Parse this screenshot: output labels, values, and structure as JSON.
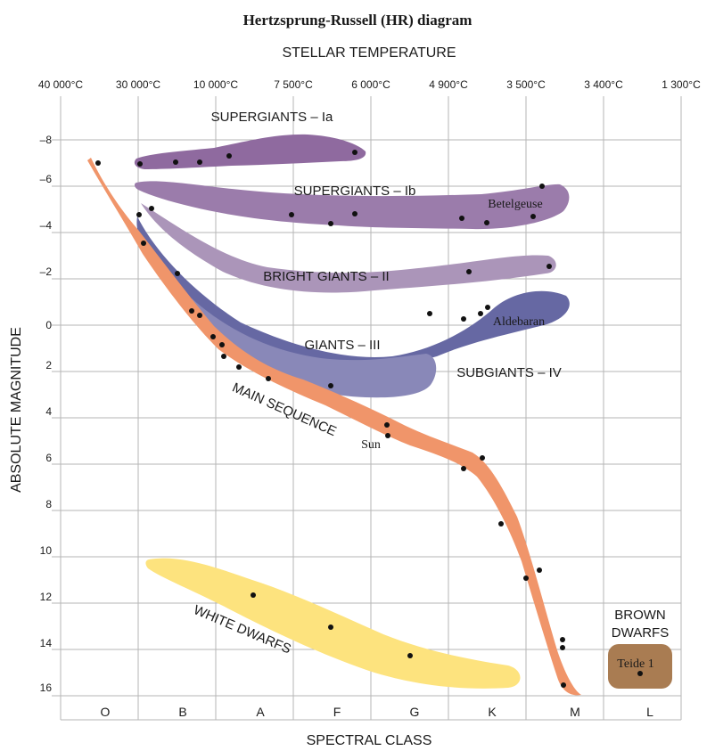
{
  "title": "Hertzsprung-Russell (HR) diagram",
  "top_axis": {
    "label": "STELLAR TEMPERATURE",
    "ticks": [
      "40 000°C",
      "30 000°C",
      "10 000°C",
      "7 500°C",
      "6 000°C",
      "4 900°C",
      "3 500°C",
      "3 400°C",
      "1 300°C"
    ]
  },
  "left_axis": {
    "label": "ABSOLUTE MAGNITUDE",
    "ticks": [
      "–8",
      "–6",
      "–4",
      "–2",
      "0",
      "2",
      "4",
      "6",
      "8",
      "10",
      "12",
      "14",
      "16"
    ]
  },
  "bottom_axis": {
    "label": "SPECTRAL CLASS",
    "classes": [
      "O",
      "B",
      "A",
      "F",
      "G",
      "K",
      "M",
      "L"
    ]
  },
  "regions": {
    "supergiants_ia": {
      "label": "SUPERGIANTS – Ia",
      "color": "#8f6a9f"
    },
    "supergiants_ib": {
      "label": "SUPERGIANTS – Ib",
      "color": "#9b7cab"
    },
    "bright_giants": {
      "label": "BRIGHT GIANTS – II",
      "color": "#ab95b9"
    },
    "giants": {
      "label": "GIANTS – III",
      "color": "#6668a3"
    },
    "subgiants": {
      "label": "SUBGIANTS – IV",
      "color": "#8988b8"
    },
    "main_sequence": {
      "label": "MAIN SEQUENCE",
      "color": "#f0956a"
    },
    "white_dwarfs": {
      "label": "WHITE DWARFS",
      "color": "#fde37e"
    },
    "brown_dwarfs": {
      "label_line1": "BROWN",
      "label_line2": "DWARFS",
      "color": "#a97c52"
    }
  },
  "star_labels": {
    "betelgeuse": "Betelgeuse",
    "aldebaran": "Aldebaran",
    "sun": "Sun",
    "teide": "Teide 1"
  },
  "colors": {
    "grid": "#b5b5b5",
    "text": "#1a1a1a",
    "star": "#111111"
  }
}
